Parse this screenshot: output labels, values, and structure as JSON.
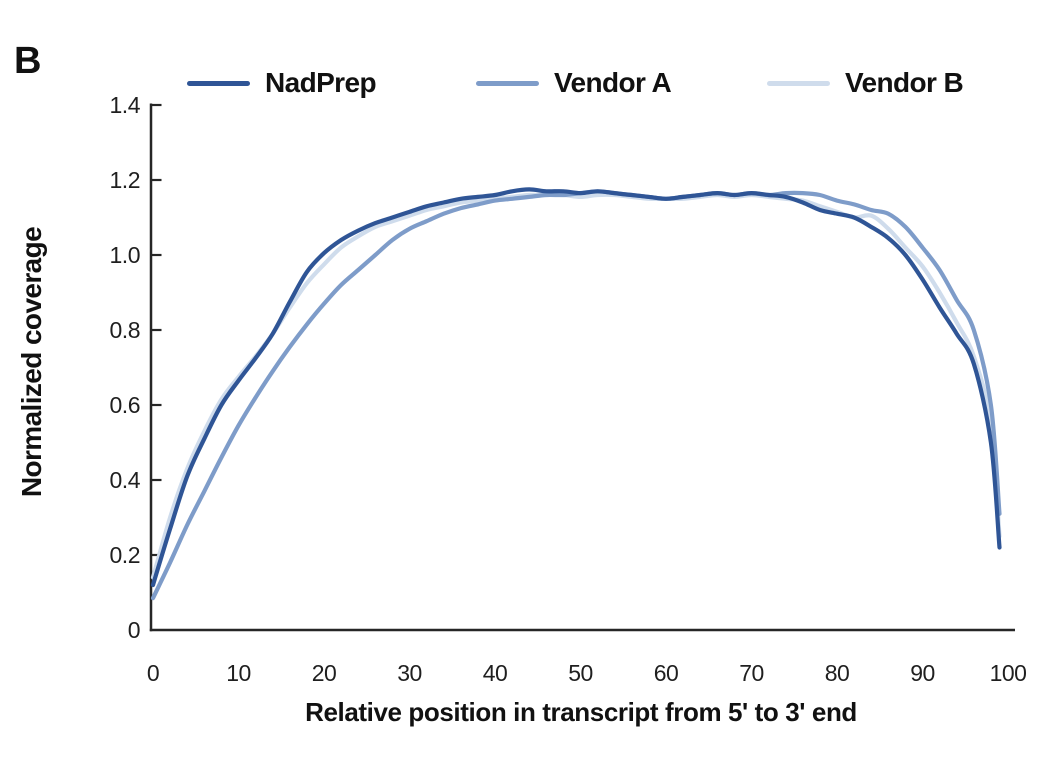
{
  "panel_label": "B",
  "colors": {
    "axis": "#262626",
    "text": "#111111",
    "background": "#ffffff",
    "series_nadprep": "#2F5596",
    "series_vendor_a": "#7E9CC9",
    "series_vendor_b": "#CFDCEC"
  },
  "chart_data": {
    "type": "line",
    "title": "",
    "xlabel": "Relative position in transcript from 5' to 3' end",
    "ylabel": "Normalized coverage",
    "xlim": [
      0,
      100
    ],
    "ylim": [
      0,
      1.4
    ],
    "grid": false,
    "legend_position": "top",
    "xticks": [
      0,
      10,
      20,
      30,
      40,
      50,
      60,
      70,
      80,
      90,
      100
    ],
    "yticks": [
      0,
      0.2,
      0.4,
      0.6,
      0.8,
      1.0,
      1.2,
      1.4
    ],
    "ytick_labels": [
      "0",
      "0.2",
      "0.4",
      "0.6",
      "0.8",
      "1.0",
      "1.2",
      "1.4"
    ],
    "x": [
      0,
      2,
      4,
      6,
      8,
      10,
      12,
      14,
      16,
      18,
      20,
      22,
      24,
      26,
      28,
      30,
      32,
      34,
      36,
      38,
      40,
      42,
      44,
      46,
      48,
      50,
      52,
      54,
      56,
      58,
      60,
      62,
      64,
      66,
      68,
      70,
      72,
      74,
      76,
      78,
      80,
      82,
      84,
      86,
      88,
      90,
      92,
      94,
      96,
      98,
      99
    ],
    "series": [
      {
        "name": "NadPrep",
        "color": "#2F5596",
        "values": [
          0.12,
          0.27,
          0.41,
          0.51,
          0.6,
          0.665,
          0.725,
          0.79,
          0.875,
          0.955,
          1.005,
          1.04,
          1.065,
          1.085,
          1.1,
          1.115,
          1.13,
          1.14,
          1.15,
          1.155,
          1.16,
          1.17,
          1.175,
          1.17,
          1.17,
          1.165,
          1.17,
          1.165,
          1.16,
          1.155,
          1.15,
          1.155,
          1.16,
          1.165,
          1.16,
          1.165,
          1.16,
          1.155,
          1.14,
          1.12,
          1.11,
          1.1,
          1.075,
          1.045,
          1.0,
          0.935,
          0.86,
          0.79,
          0.71,
          0.5,
          0.22
        ]
      },
      {
        "name": "Vendor A",
        "color": "#7E9CC9",
        "values": [
          0.085,
          0.18,
          0.28,
          0.37,
          0.46,
          0.545,
          0.62,
          0.69,
          0.755,
          0.815,
          0.87,
          0.92,
          0.96,
          1.0,
          1.04,
          1.07,
          1.09,
          1.11,
          1.125,
          1.135,
          1.145,
          1.15,
          1.155,
          1.16,
          1.16,
          1.165,
          1.17,
          1.165,
          1.16,
          1.155,
          1.15,
          1.155,
          1.16,
          1.165,
          1.16,
          1.165,
          1.16,
          1.165,
          1.165,
          1.16,
          1.145,
          1.135,
          1.12,
          1.11,
          1.075,
          1.02,
          0.96,
          0.88,
          0.8,
          0.6,
          0.31
        ]
      },
      {
        "name": "Vendor B",
        "color": "#CFDCEC",
        "values": [
          0.14,
          0.3,
          0.43,
          0.53,
          0.615,
          0.675,
          0.73,
          0.79,
          0.86,
          0.925,
          0.975,
          1.02,
          1.05,
          1.075,
          1.09,
          1.105,
          1.12,
          1.13,
          1.14,
          1.145,
          1.15,
          1.155,
          1.16,
          1.16,
          1.16,
          1.155,
          1.16,
          1.16,
          1.155,
          1.15,
          1.15,
          1.15,
          1.155,
          1.16,
          1.155,
          1.16,
          1.155,
          1.15,
          1.145,
          1.13,
          1.115,
          1.1,
          1.105,
          1.07,
          1.02,
          0.97,
          0.9,
          0.82,
          0.73,
          0.55,
          0.25
        ]
      }
    ]
  }
}
